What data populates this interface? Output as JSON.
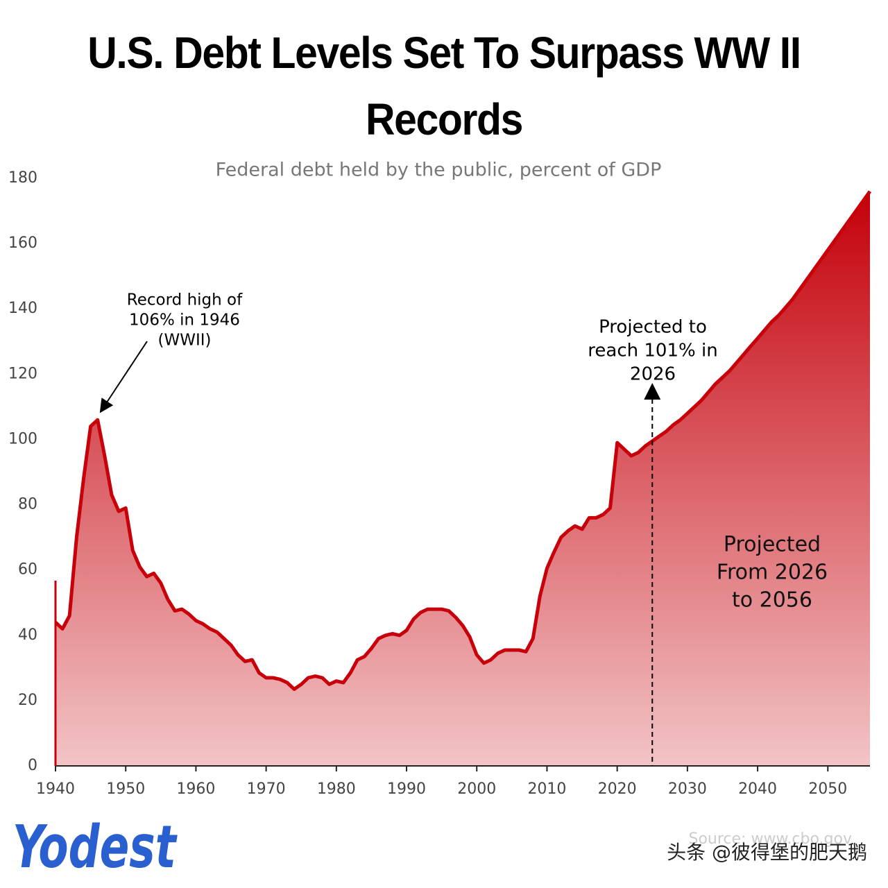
{
  "chart_data": {
    "type": "area",
    "title": "U.S. Debt Levels Set To Surpass WW II Records",
    "subtitle": "Federal debt held by the public, percent of GDP",
    "x": [
      1940,
      1941,
      1942,
      1943,
      1944,
      1945,
      1946,
      1947,
      1948,
      1949,
      1950,
      1951,
      1952,
      1953,
      1954,
      1955,
      1956,
      1957,
      1958,
      1959,
      1960,
      1961,
      1962,
      1963,
      1964,
      1965,
      1966,
      1967,
      1968,
      1969,
      1970,
      1971,
      1972,
      1973,
      1974,
      1975,
      1976,
      1977,
      1978,
      1979,
      1980,
      1981,
      1982,
      1983,
      1984,
      1985,
      1986,
      1987,
      1988,
      1989,
      1990,
      1991,
      1992,
      1993,
      1994,
      1995,
      1996,
      1997,
      1998,
      1999,
      2000,
      2001,
      2002,
      2003,
      2004,
      2005,
      2006,
      2007,
      2008,
      2009,
      2010,
      2011,
      2012,
      2013,
      2014,
      2015,
      2016,
      2017,
      2018,
      2019,
      2020,
      2021,
      2022,
      2023,
      2024,
      2025,
      2026,
      2027,
      2028,
      2029,
      2030,
      2031,
      2032,
      2033,
      2034,
      2035,
      2036,
      2037,
      2038,
      2039,
      2040,
      2041,
      2042,
      2043,
      2044,
      2045,
      2046,
      2047,
      2048,
      2049,
      2050,
      2051,
      2052,
      2053,
      2054,
      2055,
      2056
    ],
    "series": [
      {
        "name": "Federal debt held by the public",
        "color": "#c8000a",
        "values": [
          44,
          42,
          46,
          70,
          88,
          104,
          106,
          95,
          83,
          78,
          79,
          66,
          61,
          58,
          59,
          56,
          51,
          47.5,
          48,
          46.5,
          44.5,
          43.5,
          42,
          41,
          39,
          37,
          34,
          32,
          32.5,
          28.5,
          27,
          27,
          26.5,
          25.5,
          23.5,
          25,
          27,
          27.5,
          27,
          25,
          26,
          25.5,
          28.5,
          32.5,
          33.5,
          36,
          39,
          40,
          40.5,
          40,
          41.5,
          45,
          47,
          48,
          48,
          48,
          47.5,
          45.5,
          43,
          39.5,
          34,
          31.5,
          32.5,
          34.5,
          35.5,
          35.5,
          35.5,
          35,
          39,
          52,
          60.5,
          65.5,
          70,
          72,
          73.5,
          72.5,
          76,
          76,
          77,
          79,
          99,
          97,
          95,
          96,
          98,
          99.5,
          101,
          102.5,
          104.5,
          106,
          108,
          110,
          112,
          114.5,
          117,
          119,
          121,
          123.5,
          126,
          128.5,
          131,
          133.5,
          136,
          138,
          140.5,
          143,
          146,
          149,
          152,
          155,
          158,
          161,
          164,
          167,
          170,
          173,
          176
        ]
      }
    ],
    "xlim": [
      1940,
      2056
    ],
    "xticks": [
      1940,
      1950,
      1960,
      1970,
      1980,
      1990,
      2000,
      2010,
      2020,
      2030,
      2040,
      2050
    ],
    "ylim": [
      0,
      180
    ],
    "yticks": [
      0,
      20,
      40,
      60,
      80,
      100,
      120,
      140,
      160,
      180
    ],
    "projection_start": 2025,
    "annotations": [
      [
        "Record high of",
        "106% in 1946",
        "(WWII)"
      ],
      [
        "Projected to",
        "reach 101% in",
        "2026"
      ],
      [
        "Projected",
        "From 2026",
        "to 2056"
      ]
    ],
    "source": "Source: www.cbo.gov",
    "logo": "Yodest",
    "watermark": "头条 @彼得堡的肥天鹅"
  }
}
